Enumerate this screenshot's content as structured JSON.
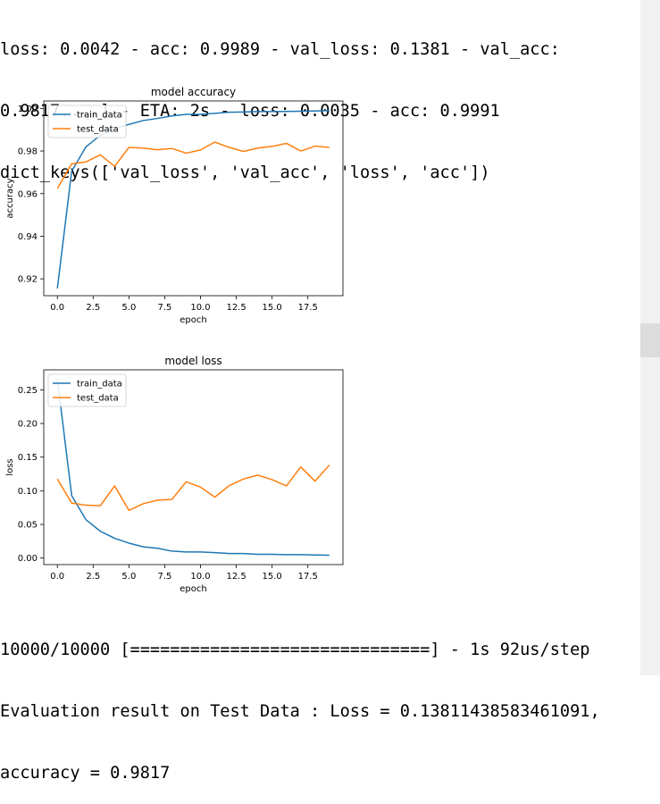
{
  "console_top": [
    "loss: 0.0042 - acc: 0.9989 - val_loss: 0.1381 - val_acc:",
    "0.9817....] - ETA: 2s - loss: 0.0035 - acc: 0.9991",
    "dict_keys(['val_loss', 'val_acc', 'loss', 'acc'])"
  ],
  "console_bottom": [
    "10000/10000 [==============================] - 1s 92us/step",
    "Evaluation result on Test Data : Loss = 0.13811438583461091,",
    "accuracy = 0.9817"
  ],
  "chart_data": [
    {
      "type": "line",
      "title": "model accuracy",
      "xlabel": "epoch",
      "ylabel": "accuracy",
      "xlim": [
        -0.95,
        19.95
      ],
      "ylim": [
        0.9121,
        1.0035
      ],
      "xticks": [
        0.0,
        2.5,
        5.0,
        7.5,
        10.0,
        12.5,
        15.0,
        17.5
      ],
      "xtick_labels": [
        "0.0",
        "2.5",
        "5.0",
        "7.5",
        "10.0",
        "12.5",
        "15.0",
        "17.5"
      ],
      "yticks": [
        0.92,
        0.94,
        0.96,
        0.98,
        1.0
      ],
      "ytick_labels": [
        "0.92",
        "0.94",
        "0.96",
        "0.98",
        "1.00"
      ],
      "legend": "upper-left",
      "x": [
        0,
        1,
        2,
        3,
        4,
        5,
        6,
        7,
        8,
        9,
        10,
        11,
        12,
        13,
        14,
        15,
        16,
        17,
        18,
        19
      ],
      "series": [
        {
          "name": "train_data",
          "color": "#1f77b4",
          "values": [
            0.9155,
            0.9705,
            0.982,
            0.9874,
            0.9905,
            0.9925,
            0.9943,
            0.9953,
            0.9965,
            0.9972,
            0.9972,
            0.9977,
            0.9982,
            0.9983,
            0.9985,
            0.9985,
            0.9986,
            0.9987,
            0.9988,
            0.999
          ]
        },
        {
          "name": "test_data",
          "color": "#ff7f0e",
          "values": [
            0.9624,
            0.974,
            0.9749,
            0.9782,
            0.9728,
            0.9817,
            0.9814,
            0.9806,
            0.9812,
            0.979,
            0.9805,
            0.9842,
            0.9817,
            0.9798,
            0.9814,
            0.9822,
            0.9836,
            0.98,
            0.9823,
            0.9817
          ]
        }
      ]
    },
    {
      "type": "line",
      "title": "model loss",
      "xlabel": "epoch",
      "ylabel": "loss",
      "xlim": [
        -0.95,
        19.95
      ],
      "ylim": [
        -0.0097,
        0.2797
      ],
      "xticks": [
        0.0,
        2.5,
        5.0,
        7.5,
        10.0,
        12.5,
        15.0,
        17.5
      ],
      "xtick_labels": [
        "0.0",
        "2.5",
        "5.0",
        "7.5",
        "10.0",
        "12.5",
        "15.0",
        "17.5"
      ],
      "yticks": [
        0.0,
        0.05,
        0.1,
        0.15,
        0.2,
        0.25
      ],
      "ytick_labels": [
        "0.00",
        "0.05",
        "0.10",
        "0.15",
        "0.20",
        "0.25"
      ],
      "legend": "upper-left",
      "x": [
        0,
        1,
        2,
        3,
        4,
        5,
        6,
        7,
        8,
        9,
        10,
        11,
        12,
        13,
        14,
        15,
        16,
        17,
        18,
        19
      ],
      "series": [
        {
          "name": "train_data",
          "color": "#1f77b4",
          "values": [
            0.266,
            0.0929,
            0.0569,
            0.0399,
            0.0294,
            0.0222,
            0.0167,
            0.0145,
            0.0103,
            0.0091,
            0.009,
            0.0081,
            0.0067,
            0.0067,
            0.0055,
            0.0055,
            0.005,
            0.005,
            0.0045,
            0.0042
          ]
        },
        {
          "name": "test_data",
          "color": "#ff7f0e",
          "values": [
            0.1175,
            0.0817,
            0.0785,
            0.0778,
            0.1072,
            0.0709,
            0.0808,
            0.086,
            0.087,
            0.1134,
            0.1054,
            0.0905,
            0.1075,
            0.1175,
            0.1232,
            0.1165,
            0.1072,
            0.1354,
            0.1143,
            0.1381
          ]
        }
      ]
    }
  ]
}
